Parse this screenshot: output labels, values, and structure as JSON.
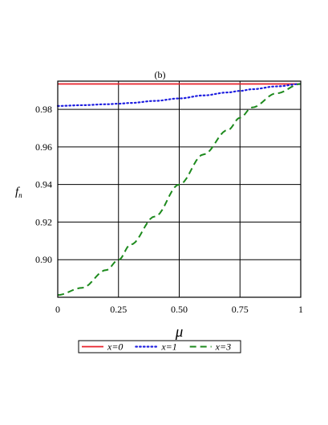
{
  "chart_data": {
    "type": "line",
    "title": "(b)",
    "xlabel": "μ",
    "ylabel": "f",
    "ylabel_sub": "n",
    "xlim": [
      0,
      1
    ],
    "ylim": [
      0.88,
      0.995
    ],
    "grid": true,
    "legend_placement": "bottom",
    "x_ticks": [
      0,
      0.25,
      0.5,
      0.75,
      1
    ],
    "x_tick_labels": [
      "0",
      "0.25",
      "0.50",
      "0.75",
      "1"
    ],
    "y_ticks": [
      0.9,
      0.92,
      0.94,
      0.96,
      0.98
    ],
    "y_tick_labels": [
      "0.90",
      "0.92",
      "0.94",
      "0.96",
      "0.98"
    ],
    "x": [
      0,
      0.1,
      0.2,
      0.25,
      0.3,
      0.4,
      0.5,
      0.6,
      0.7,
      0.75,
      0.8,
      0.9,
      1.0
    ],
    "series": [
      {
        "name": "x=0",
        "color": "#e8202a",
        "dash": "solid",
        "values": [
          0.9935,
          0.9935,
          0.9935,
          0.9935,
          0.9935,
          0.9935,
          0.9935,
          0.9935,
          0.9935,
          0.9935,
          0.9935,
          0.9935,
          0.9935
        ]
      },
      {
        "name": "x=1",
        "color": "#1f1fe0",
        "dash": "dotted",
        "values": [
          0.9818,
          0.9822,
          0.9827,
          0.983,
          0.9834,
          0.9845,
          0.9858,
          0.9874,
          0.989,
          0.9898,
          0.9907,
          0.9922,
          0.9935
        ]
      },
      {
        "name": "x=3",
        "color": "#1d8a1d",
        "dash": "dashed",
        "values": [
          0.8812,
          0.885,
          0.8945,
          0.8999,
          0.908,
          0.923,
          0.94,
          0.956,
          0.969,
          0.9755,
          0.981,
          0.9885,
          0.9935
        ]
      }
    ]
  }
}
